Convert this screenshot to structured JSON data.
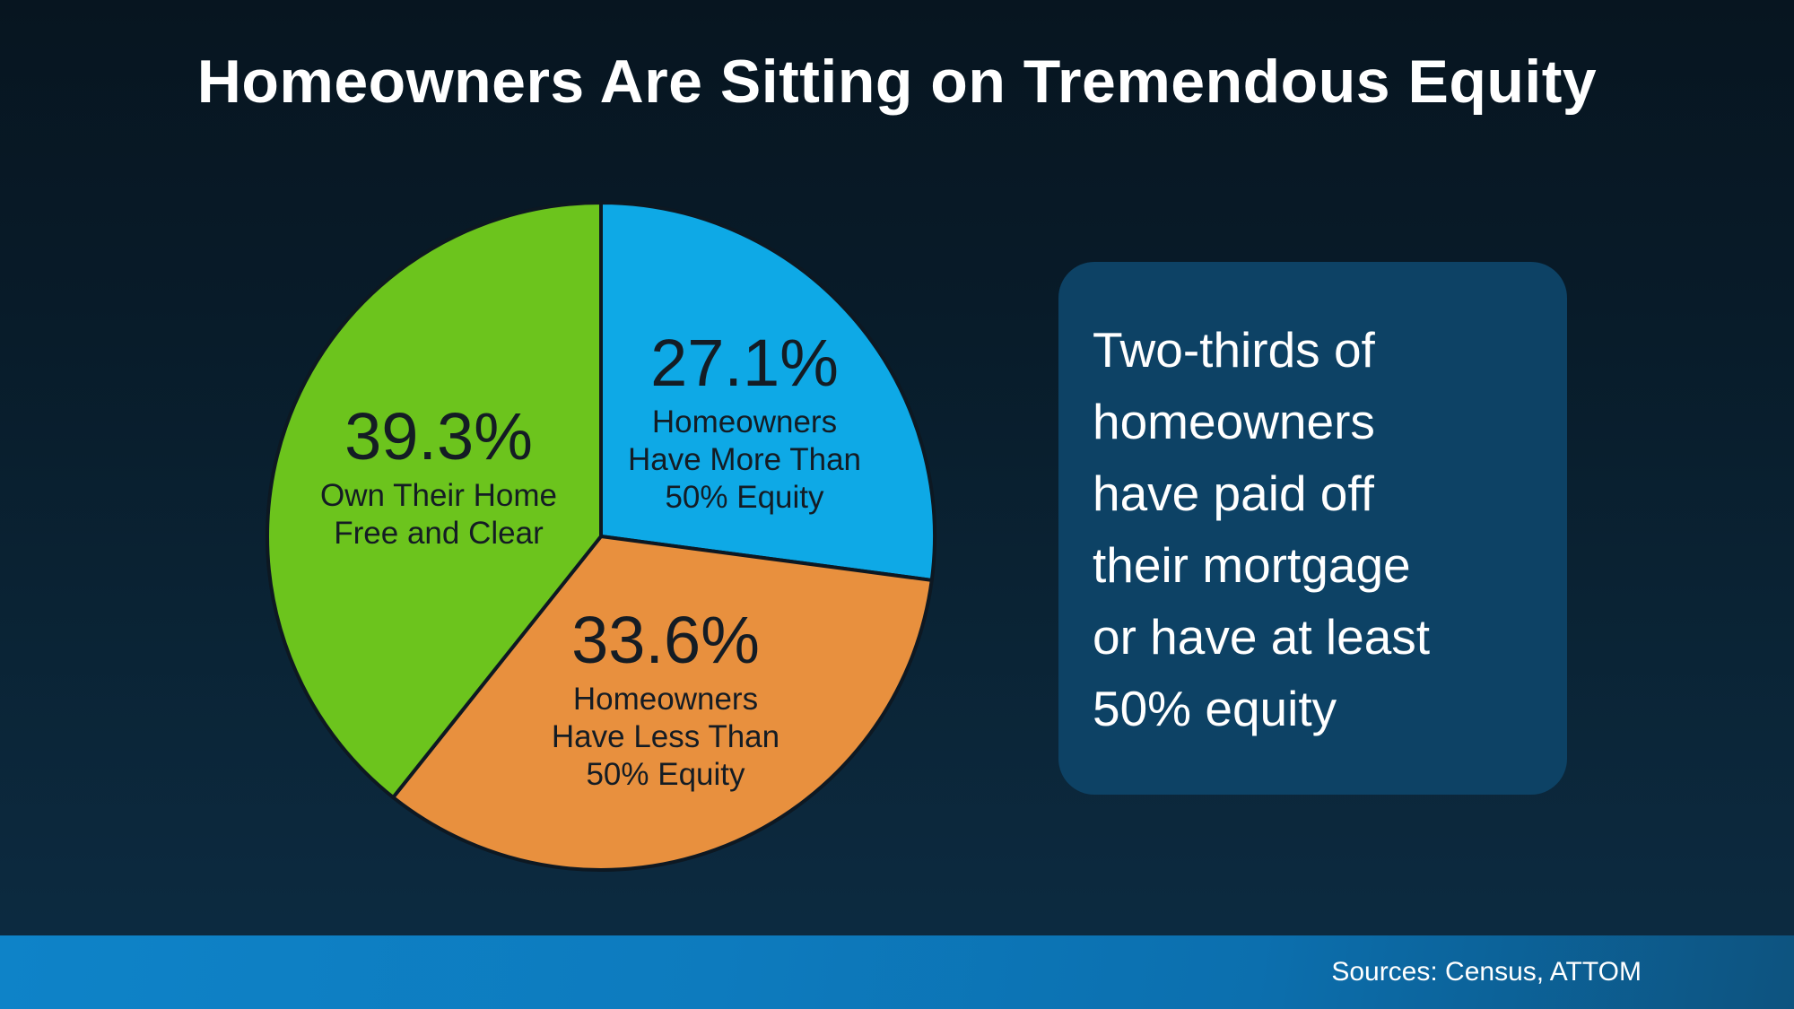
{
  "title": "Homeowners Are Sitting on Tremendous Equity",
  "chart_data": {
    "type": "pie",
    "title": "Homeowners Are Sitting on Tremendous Equity",
    "start_angle_deg": 0,
    "direction": "clockwise",
    "legend": "none",
    "stroke_color": "#0d1822",
    "slices": [
      {
        "name": "more-than-50-equity",
        "value": 27.1,
        "display": "27.1%",
        "sublabel": "Homeowners\nHave More Than\n50% Equity",
        "color": "#0ea9e6"
      },
      {
        "name": "less-than-50-equity",
        "value": 33.6,
        "display": "33.6%",
        "sublabel": "Homeowners\nHave Less Than\n50% Equity",
        "color": "#e8903e"
      },
      {
        "name": "own-free-and-clear",
        "value": 39.3,
        "display": "39.3%",
        "sublabel": "Own Their Home\nFree and Clear",
        "color": "#6cc41d"
      }
    ]
  },
  "callout": {
    "text": "Two-thirds of\nhomeowners\nhave paid off\ntheir mortgage\nor have at least\n50% equity",
    "background": "#0d4265"
  },
  "footer": {
    "sources": "Sources: Census, ATTOM",
    "bar_color_left": "#0e83c8",
    "bar_color_right": "#0d537f"
  }
}
